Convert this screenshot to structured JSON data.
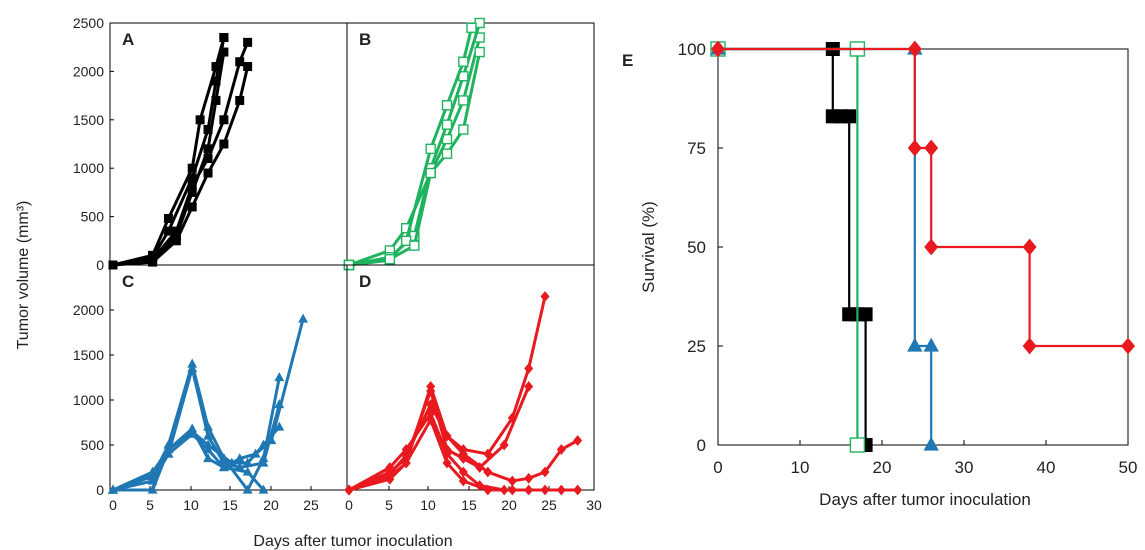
{
  "figure": {
    "left_axis_title": "Tumor volume (mm³)",
    "left_x_title": "Days after tumor inoculation",
    "right_y_title": "Survival (%)",
    "right_x_title": "Days after tumor inoculation"
  },
  "chart_data": [
    {
      "panel": "A",
      "type": "line",
      "color": "#000000",
      "marker": "square-filled",
      "xlim": [
        0,
        25
      ],
      "ylim": [
        0,
        2500
      ],
      "yticks": [
        0,
        500,
        1000,
        1500,
        2000,
        2500
      ],
      "series": [
        {
          "x": [
            0,
            5,
            8,
            10,
            12,
            13,
            14
          ],
          "y": [
            0,
            50,
            300,
            750,
            1200,
            1700,
            2200
          ]
        },
        {
          "x": [
            0,
            5,
            7,
            10,
            12,
            13,
            14
          ],
          "y": [
            0,
            80,
            350,
            900,
            1400,
            1900,
            2350
          ]
        },
        {
          "x": [
            0,
            5,
            7,
            10,
            11,
            13,
            14
          ],
          "y": [
            0,
            100,
            480,
            1000,
            1500,
            2050,
            2350
          ]
        },
        {
          "x": [
            0,
            5,
            8,
            10,
            12,
            14,
            16,
            17
          ],
          "y": [
            0,
            60,
            350,
            820,
            1100,
            1500,
            2100,
            2300
          ]
        },
        {
          "x": [
            0,
            5,
            8,
            10,
            12,
            14,
            16,
            17
          ],
          "y": [
            0,
            30,
            250,
            600,
            950,
            1250,
            1700,
            2050
          ]
        }
      ]
    },
    {
      "panel": "B",
      "type": "line",
      "color": "#1fb35f",
      "marker": "square-open",
      "xlim": [
        0,
        30
      ],
      "ylim": [
        0,
        2500
      ],
      "series": [
        {
          "x": [
            0,
            5,
            7,
            10,
            12,
            14,
            16
          ],
          "y": [
            0,
            150,
            380,
            950,
            1300,
            1700,
            2350
          ]
        },
        {
          "x": [
            0,
            5,
            8,
            10,
            12,
            14,
            16
          ],
          "y": [
            0,
            80,
            300,
            1000,
            1450,
            1950,
            2500
          ]
        },
        {
          "x": [
            0,
            5,
            7,
            10,
            12,
            14,
            15
          ],
          "y": [
            0,
            50,
            250,
            1200,
            1650,
            2100,
            2450
          ]
        },
        {
          "x": [
            0,
            5,
            8,
            10,
            12,
            14,
            16
          ],
          "y": [
            0,
            60,
            200,
            950,
            1150,
            1400,
            2200
          ]
        }
      ]
    },
    {
      "panel": "C",
      "type": "line",
      "color": "#1f77b4",
      "marker": "triangle-filled",
      "xlim": [
        0,
        25
      ],
      "ylim": [
        0,
        2500
      ],
      "yticks": [
        0,
        500,
        1000,
        1500,
        2000
      ],
      "series": [
        {
          "x": [
            0,
            5,
            7,
            10,
            12,
            14,
            17,
            19,
            21
          ],
          "y": [
            0,
            150,
            500,
            1400,
            700,
            350,
            0,
            350,
            1250
          ]
        },
        {
          "x": [
            0,
            5,
            7,
            10,
            12,
            14,
            16,
            19,
            21
          ],
          "y": [
            0,
            100,
            400,
            1350,
            600,
            300,
            250,
            300,
            950
          ]
        },
        {
          "x": [
            0,
            5,
            7,
            10,
            12,
            15,
            17,
            19,
            21
          ],
          "y": [
            0,
            200,
            450,
            650,
            500,
            300,
            300,
            500,
            700
          ]
        },
        {
          "x": [
            0,
            5,
            7,
            10,
            12,
            14,
            16,
            18,
            20,
            24
          ],
          "y": [
            0,
            180,
            400,
            620,
            450,
            250,
            350,
            400,
            550,
            1900
          ]
        },
        {
          "x": [
            0,
            5,
            7,
            10,
            12,
            14,
            17,
            19
          ],
          "y": [
            0,
            0,
            450,
            680,
            350,
            250,
            200,
            0
          ]
        }
      ]
    },
    {
      "panel": "D",
      "type": "line",
      "color": "#e8191f",
      "marker": "diamond-filled",
      "xlim": [
        0,
        30
      ],
      "ylim": [
        0,
        2500
      ],
      "series": [
        {
          "x": [
            0,
            5,
            7,
            10,
            12,
            14,
            17,
            20,
            22,
            24
          ],
          "y": [
            0,
            150,
            300,
            1150,
            600,
            450,
            400,
            800,
            1350,
            2150
          ]
        },
        {
          "x": [
            0,
            5,
            7,
            10,
            12,
            14,
            16,
            19,
            22
          ],
          "y": [
            0,
            200,
            350,
            1100,
            450,
            350,
            250,
            500,
            1150
          ]
        },
        {
          "x": [
            0,
            5,
            7,
            10,
            12,
            14,
            17,
            20,
            22,
            24,
            26,
            28
          ],
          "y": [
            0,
            180,
            380,
            950,
            600,
            400,
            200,
            100,
            130,
            200,
            450,
            550
          ]
        },
        {
          "x": [
            0,
            5,
            7,
            10,
            12,
            14,
            16,
            19,
            22,
            24,
            26,
            28
          ],
          "y": [
            0,
            250,
            450,
            850,
            400,
            200,
            50,
            0,
            0,
            0,
            0,
            0
          ]
        },
        {
          "x": [
            0,
            5,
            7,
            10,
            12,
            14,
            17,
            20
          ],
          "y": [
            0,
            120,
            300,
            780,
            300,
            100,
            0,
            0
          ]
        }
      ]
    },
    {
      "panel": "E",
      "type": "line",
      "step": true,
      "xlim": [
        0,
        50
      ],
      "ylim": [
        0,
        100
      ],
      "xticks": [
        0,
        10,
        20,
        30,
        40,
        50
      ],
      "yticks": [
        0,
        25,
        50,
        75,
        100
      ],
      "series": [
        {
          "color": "#000000",
          "marker": "square-filled",
          "x": [
            0,
            14,
            14,
            15,
            16,
            16,
            17,
            18,
            18
          ],
          "y": [
            100,
            100,
            83,
            83,
            83,
            33,
            33,
            33,
            0
          ]
        },
        {
          "color": "#1fb35f",
          "marker": "square-open",
          "x": [
            0,
            17,
            17
          ],
          "y": [
            100,
            100,
            0
          ]
        },
        {
          "color": "#1f77b4",
          "marker": "triangle-filled",
          "x": [
            0,
            24,
            24,
            26,
            26
          ],
          "y": [
            100,
            100,
            25,
            25,
            0
          ]
        },
        {
          "color": "#e8191f",
          "marker": "diamond-filled",
          "x": [
            0,
            24,
            24,
            26,
            26,
            38,
            38,
            50
          ],
          "y": [
            100,
            100,
            75,
            75,
            50,
            50,
            25,
            25
          ]
        }
      ]
    }
  ]
}
